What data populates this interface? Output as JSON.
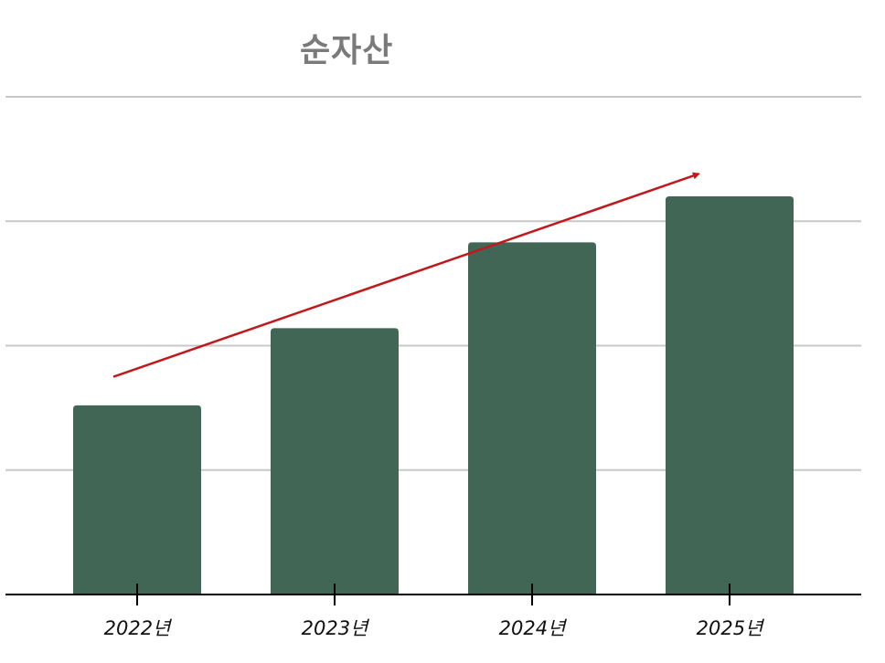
{
  "chart_data": {
    "type": "bar",
    "title": "순자산",
    "categories": [
      "2022년",
      "2023년",
      "2024년",
      "2025년"
    ],
    "values": [
      1.52,
      2.14,
      2.83,
      3.2
    ],
    "ylim": [
      0,
      4
    ],
    "grid": true,
    "bar_color": "#426656",
    "grid_color": "#c8c8c8",
    "axis_color": "#000000",
    "arrow_color": "#c0181b",
    "trend_arrow": {
      "from": [
        0,
        1.75
      ],
      "to": [
        3,
        3.38
      ]
    }
  }
}
